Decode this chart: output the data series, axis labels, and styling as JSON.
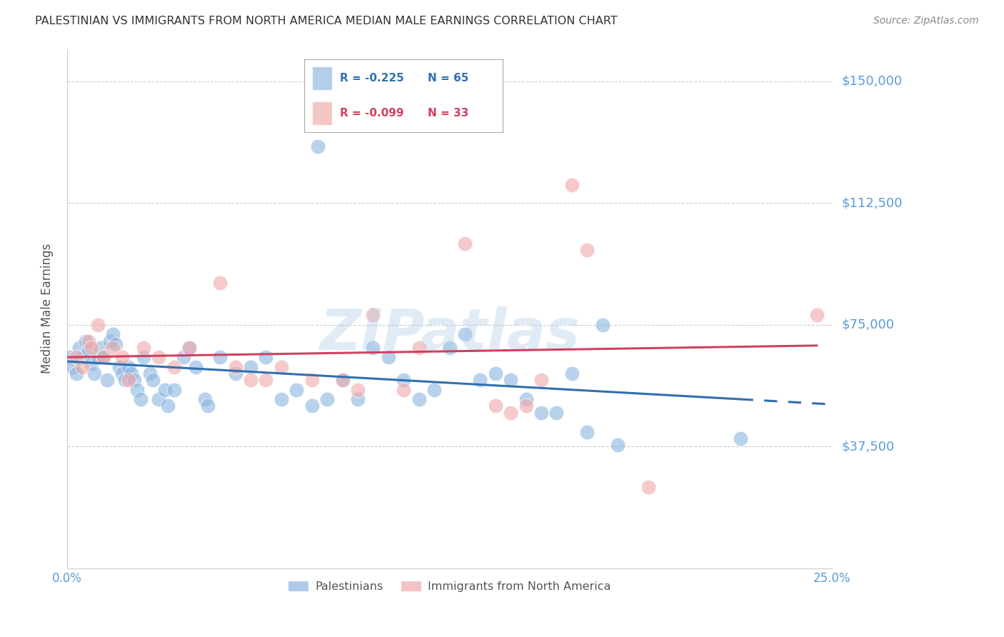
{
  "title": "PALESTINIAN VS IMMIGRANTS FROM NORTH AMERICA MEDIAN MALE EARNINGS CORRELATION CHART",
  "source": "Source: ZipAtlas.com",
  "ylabel": "Median Male Earnings",
  "ytick_labels": [
    "$150,000",
    "$112,500",
    "$75,000",
    "$37,500"
  ],
  "ytick_values": [
    150000,
    112500,
    75000,
    37500
  ],
  "ylim": [
    0,
    160000
  ],
  "xlim": [
    0.0,
    0.25
  ],
  "legend_blue": {
    "R": "-0.225",
    "N": "65",
    "label": "Palestinians"
  },
  "legend_pink": {
    "R": "-0.099",
    "N": "33",
    "label": "Immigrants from North America"
  },
  "blue_color": "#8ab4e0",
  "pink_color": "#f0a8a8",
  "line_blue_color": "#3070b0",
  "line_pink_color": "#d04060",
  "watermark": "ZIPatlas",
  "blue_points": [
    [
      0.001,
      65000
    ],
    [
      0.002,
      62000
    ],
    [
      0.003,
      60000
    ],
    [
      0.004,
      68000
    ],
    [
      0.005,
      65000
    ],
    [
      0.006,
      70000
    ],
    [
      0.007,
      67000
    ],
    [
      0.008,
      63000
    ],
    [
      0.009,
      60000
    ],
    [
      0.01,
      65000
    ],
    [
      0.011,
      68000
    ],
    [
      0.012,
      65000
    ],
    [
      0.013,
      58000
    ],
    [
      0.014,
      70000
    ],
    [
      0.015,
      72000
    ],
    [
      0.016,
      69000
    ],
    [
      0.017,
      62000
    ],
    [
      0.018,
      60000
    ],
    [
      0.019,
      58000
    ],
    [
      0.02,
      62000
    ],
    [
      0.021,
      60000
    ],
    [
      0.022,
      58000
    ],
    [
      0.023,
      55000
    ],
    [
      0.024,
      52000
    ],
    [
      0.025,
      65000
    ],
    [
      0.027,
      60000
    ],
    [
      0.028,
      58000
    ],
    [
      0.03,
      52000
    ],
    [
      0.032,
      55000
    ],
    [
      0.033,
      50000
    ],
    [
      0.035,
      55000
    ],
    [
      0.038,
      65000
    ],
    [
      0.04,
      68000
    ],
    [
      0.042,
      62000
    ],
    [
      0.045,
      52000
    ],
    [
      0.046,
      50000
    ],
    [
      0.05,
      65000
    ],
    [
      0.055,
      60000
    ],
    [
      0.06,
      62000
    ],
    [
      0.065,
      65000
    ],
    [
      0.07,
      52000
    ],
    [
      0.075,
      55000
    ],
    [
      0.08,
      50000
    ],
    [
      0.082,
      130000
    ],
    [
      0.085,
      52000
    ],
    [
      0.09,
      58000
    ],
    [
      0.095,
      52000
    ],
    [
      0.1,
      68000
    ],
    [
      0.105,
      65000
    ],
    [
      0.11,
      58000
    ],
    [
      0.115,
      52000
    ],
    [
      0.12,
      55000
    ],
    [
      0.125,
      68000
    ],
    [
      0.13,
      72000
    ],
    [
      0.135,
      58000
    ],
    [
      0.14,
      60000
    ],
    [
      0.145,
      58000
    ],
    [
      0.15,
      52000
    ],
    [
      0.155,
      48000
    ],
    [
      0.16,
      48000
    ],
    [
      0.165,
      60000
    ],
    [
      0.17,
      42000
    ],
    [
      0.175,
      75000
    ],
    [
      0.18,
      38000
    ],
    [
      0.22,
      40000
    ]
  ],
  "pink_points": [
    [
      0.003,
      65000
    ],
    [
      0.005,
      62000
    ],
    [
      0.007,
      70000
    ],
    [
      0.008,
      68000
    ],
    [
      0.01,
      75000
    ],
    [
      0.012,
      65000
    ],
    [
      0.015,
      68000
    ],
    [
      0.018,
      65000
    ],
    [
      0.02,
      58000
    ],
    [
      0.025,
      68000
    ],
    [
      0.03,
      65000
    ],
    [
      0.035,
      62000
    ],
    [
      0.04,
      68000
    ],
    [
      0.05,
      88000
    ],
    [
      0.055,
      62000
    ],
    [
      0.06,
      58000
    ],
    [
      0.065,
      58000
    ],
    [
      0.07,
      62000
    ],
    [
      0.08,
      58000
    ],
    [
      0.09,
      58000
    ],
    [
      0.095,
      55000
    ],
    [
      0.1,
      78000
    ],
    [
      0.11,
      55000
    ],
    [
      0.115,
      68000
    ],
    [
      0.13,
      100000
    ],
    [
      0.14,
      50000
    ],
    [
      0.145,
      48000
    ],
    [
      0.15,
      50000
    ],
    [
      0.155,
      58000
    ],
    [
      0.165,
      118000
    ],
    [
      0.17,
      98000
    ],
    [
      0.19,
      25000
    ],
    [
      0.245,
      78000
    ]
  ]
}
